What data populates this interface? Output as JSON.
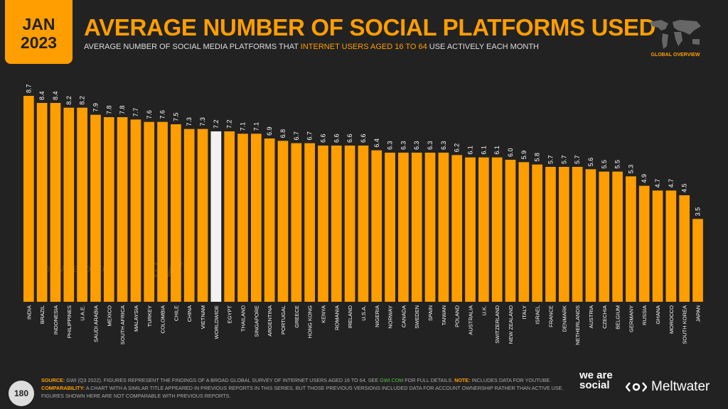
{
  "header": {
    "month": "JAN",
    "year": "2023",
    "title": "AVERAGE NUMBER OF SOCIAL PLATFORMS USED",
    "subtitle_pre": "AVERAGE NUMBER OF SOCIAL MEDIA PLATFORMS THAT ",
    "subtitle_hl": "INTERNET USERS AGED 16 TO 64",
    "subtitle_post": " USE ACTIVELY EACH MONTH",
    "badge": "GLOBAL OVERVIEW"
  },
  "watermark": {
    "datareportal": "DATAREPORTAL",
    "gwi": "GWI."
  },
  "footer": {
    "page": "180",
    "source_label": "SOURCE:",
    "source_text": " GWI (Q3 2022). FIGURES REPRESENT THE FINDINGS OF A BROAD GLOBAL SURVEY OF INTERNET USERS AGED 16 TO 64. SEE ",
    "source_link": "GWI.COM",
    "source_text2": " FOR FULL DETAILS. ",
    "note_label": "NOTE:",
    "note_text": " INCLUDES DATA FOR YOUTUBE.",
    "comp_label": "COMPARABILITY:",
    "comp_text": " A CHART WITH A SIMILAR TITLE APPEARED IN PREVIOUS REPORTS IN THIS SERIES, BUT THOSE PREVIOUS VERSIONS INCLUDED DATA FOR ACCOUNT OWNERSHIP RATHER THAN ACTIVE USE. FIGURES SHOWN HERE ARE NOT COMPARABLE WITH PREVIOUS REPORTS.",
    "logo1": "we are social",
    "logo2": "Meltwater"
  },
  "colors": {
    "bar": "#FF9E00",
    "highlight": "#F2F2F2",
    "background": "#222222"
  },
  "chart_data": {
    "type": "bar",
    "title": "",
    "xlabel": "",
    "ylabel": "",
    "ylim": [
      0,
      9
    ],
    "grid": false,
    "highlight_category": "WORLDWIDE",
    "categories": [
      "INDIA",
      "BRAZIL",
      "INDONESIA",
      "PHILIPPINES",
      "U.A.E.",
      "SAUDI ARABIA",
      "MEXICO",
      "SOUTH AFRICA",
      "MALAYSIA",
      "TURKEY",
      "COLOMBIA",
      "CHILE",
      "CHINA",
      "VIETNAM",
      "WORLDWIDE",
      "EGYPT",
      "THAILAND",
      "SINGAPORE",
      "ARGENTINA",
      "PORTUGAL",
      "GREECE",
      "HONG KONG",
      "KENYA",
      "ROMANIA",
      "IRELAND",
      "U.S.A.",
      "NIGERIA",
      "NORWAY",
      "CANADA",
      "SWEDEN",
      "SPAIN",
      "TAIWAN",
      "POLAND",
      "AUSTRALIA",
      "U.K.",
      "SWITZERLAND",
      "NEW ZEALAND",
      "ITALY",
      "ISRAEL",
      "FRANCE",
      "DENMARK",
      "NETHERLANDS",
      "AUSTRIA",
      "CZECHIA",
      "BELGIUM",
      "GERMANY",
      "RUSSIA",
      "GHANA",
      "MOROCCO",
      "SOUTH KOREA",
      "JAPAN"
    ],
    "values": [
      8.7,
      8.4,
      8.4,
      8.2,
      8.2,
      7.9,
      7.8,
      7.8,
      7.7,
      7.6,
      7.6,
      7.5,
      7.3,
      7.3,
      7.2,
      7.2,
      7.1,
      7.1,
      6.9,
      6.8,
      6.7,
      6.7,
      6.6,
      6.6,
      6.6,
      6.6,
      6.4,
      6.3,
      6.3,
      6.3,
      6.3,
      6.3,
      6.2,
      6.1,
      6.1,
      6.1,
      6.0,
      5.9,
      5.8,
      5.7,
      5.7,
      5.7,
      5.6,
      5.5,
      5.5,
      5.3,
      4.9,
      4.7,
      4.7,
      4.5,
      3.5
    ]
  }
}
